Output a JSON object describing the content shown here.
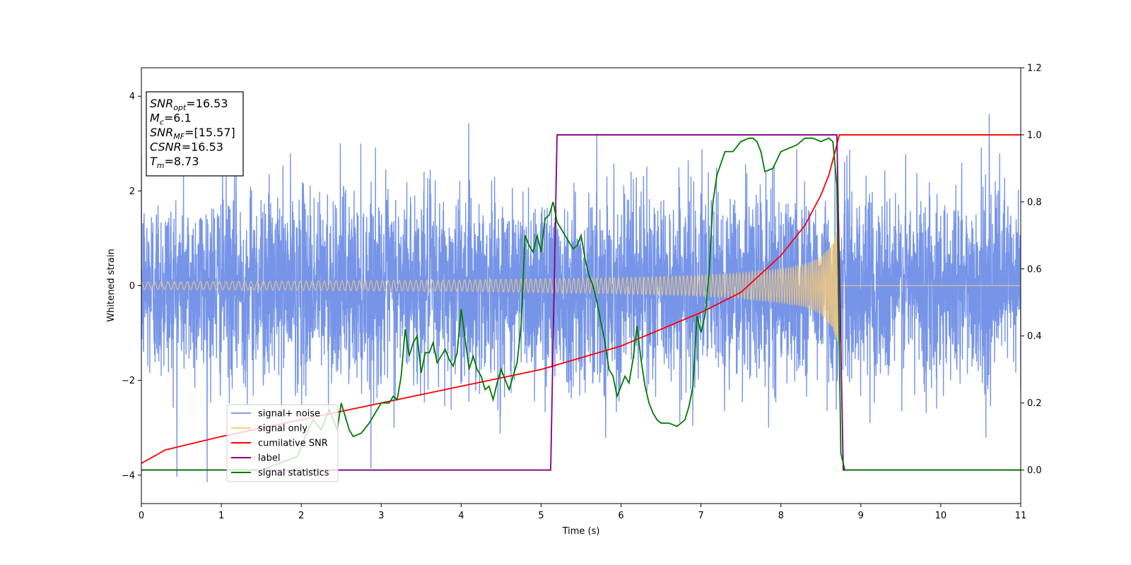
{
  "chart_data": {
    "type": "line",
    "title": "",
    "xlabel": "Time (s)",
    "ylabel": "Whitened strain",
    "ylabel_right": "",
    "xlim": [
      0,
      11
    ],
    "ylim": [
      -4.6,
      4.6
    ],
    "ylim_right": [
      -0.1,
      1.2
    ],
    "xticks": [
      "0",
      "1",
      "2",
      "3",
      "4",
      "5",
      "6",
      "7",
      "8",
      "9",
      "10",
      "11"
    ],
    "yticks": [
      "−4",
      "−2",
      "0",
      "2",
      "4"
    ],
    "yticks_right": [
      "0.0",
      "0.2",
      "0.4",
      "0.6",
      "0.8",
      "1.0",
      "1.2"
    ],
    "grid": false,
    "legend_position": "lower-left",
    "colors": {
      "noise": "#6b8ce6",
      "signal": "#f5c97a",
      "csnr": "#ff0000",
      "label": "#800080",
      "stats": "#007a00"
    },
    "annotation": {
      "lines": [
        {
          "base": "SNR",
          "sub": "opt",
          "value": "=16.53"
        },
        {
          "base": "M",
          "sub": "c",
          "value": "=6.1"
        },
        {
          "base": "SNR",
          "sub": "MF",
          "value": "=[15.57]"
        },
        {
          "base": "CSNR",
          "sub": "",
          "value": "=16.53"
        },
        {
          "base": "T",
          "sub": "m",
          "value": "=8.73"
        }
      ]
    },
    "series": [
      {
        "name": "signal+ noise",
        "axis": "left",
        "kind": "noise",
        "sigma": 1.0,
        "x_range": [
          0,
          11
        ],
        "envelope_note": "white noise, amplitude mostly within ±3"
      },
      {
        "name": "signal only",
        "axis": "left",
        "kind": "chirp",
        "merger_time": 8.73,
        "envelope": {
          "x": [
            0,
            2,
            4,
            6,
            7,
            7.5,
            8,
            8.3,
            8.5,
            8.65,
            8.73
          ],
          "y": [
            0.08,
            0.1,
            0.12,
            0.17,
            0.22,
            0.27,
            0.36,
            0.45,
            0.6,
            0.9,
            1.35
          ]
        }
      },
      {
        "name": "cumilative SNR",
        "axis": "right",
        "x": [
          0,
          0.3,
          1,
          2,
          3,
          4,
          5,
          6,
          7,
          7.5,
          8,
          8.3,
          8.5,
          8.6,
          8.7,
          8.73,
          11
        ],
        "y": [
          0.02,
          0.06,
          0.1,
          0.15,
          0.2,
          0.25,
          0.3,
          0.37,
          0.47,
          0.53,
          0.64,
          0.73,
          0.82,
          0.88,
          0.97,
          1.0,
          1.0
        ]
      },
      {
        "name": "label",
        "axis": "right",
        "x": [
          0,
          5.12,
          5.2,
          8.7,
          8.78,
          11
        ],
        "y": [
          0,
          0,
          1,
          1,
          0,
          0
        ]
      },
      {
        "name": "signal statistics",
        "axis": "right",
        "x": [
          0,
          0.5,
          1,
          1.5,
          1.95,
          2.05,
          2.15,
          2.25,
          2.35,
          2.45,
          2.5,
          2.55,
          2.6,
          2.65,
          2.75,
          2.85,
          2.95,
          3.0,
          3.1,
          3.15,
          3.2,
          3.25,
          3.3,
          3.35,
          3.4,
          3.45,
          3.5,
          3.55,
          3.6,
          3.65,
          3.7,
          3.75,
          3.8,
          3.85,
          3.9,
          3.95,
          4.0,
          4.1,
          4.15,
          4.2,
          4.25,
          4.3,
          4.35,
          4.4,
          4.45,
          4.5,
          4.55,
          4.6,
          4.65,
          4.7,
          4.75,
          4.8,
          4.85,
          4.9,
          4.95,
          5.0,
          5.05,
          5.1,
          5.15,
          5.2,
          5.25,
          5.3,
          5.35,
          5.4,
          5.45,
          5.5,
          5.55,
          5.6,
          5.65,
          5.7,
          5.75,
          5.8,
          5.85,
          5.9,
          5.95,
          6.0,
          6.05,
          6.1,
          6.15,
          6.2,
          6.25,
          6.3,
          6.35,
          6.4,
          6.45,
          6.5,
          6.6,
          6.7,
          6.8,
          6.85,
          6.9,
          6.95,
          7.0,
          7.05,
          7.1,
          7.15,
          7.2,
          7.3,
          7.4,
          7.5,
          7.6,
          7.65,
          7.7,
          7.75,
          7.8,
          7.9,
          8.0,
          8.1,
          8.2,
          8.3,
          8.4,
          8.5,
          8.6,
          8.65,
          8.7,
          8.75,
          8.8,
          11
        ],
        "y": [
          0.0,
          0.0,
          0.0,
          0.0,
          0.04,
          0.1,
          0.15,
          0.12,
          0.18,
          0.12,
          0.2,
          0.16,
          0.12,
          0.1,
          0.11,
          0.14,
          0.18,
          0.2,
          0.2,
          0.22,
          0.21,
          0.28,
          0.42,
          0.34,
          0.38,
          0.4,
          0.29,
          0.35,
          0.35,
          0.38,
          0.32,
          0.34,
          0.36,
          0.33,
          0.31,
          0.35,
          0.48,
          0.3,
          0.34,
          0.3,
          0.28,
          0.24,
          0.25,
          0.21,
          0.26,
          0.3,
          0.27,
          0.24,
          0.28,
          0.32,
          0.43,
          0.7,
          0.67,
          0.65,
          0.7,
          0.65,
          0.75,
          0.76,
          0.8,
          0.74,
          0.72,
          0.7,
          0.68,
          0.66,
          0.67,
          0.7,
          0.63,
          0.58,
          0.55,
          0.5,
          0.44,
          0.38,
          0.3,
          0.28,
          0.22,
          0.25,
          0.28,
          0.26,
          0.33,
          0.43,
          0.33,
          0.25,
          0.2,
          0.17,
          0.15,
          0.14,
          0.14,
          0.13,
          0.15,
          0.19,
          0.25,
          0.46,
          0.41,
          0.46,
          0.58,
          0.8,
          0.88,
          0.95,
          0.95,
          0.98,
          0.99,
          0.99,
          0.98,
          0.95,
          0.89,
          0.9,
          0.95,
          0.96,
          0.97,
          0.99,
          0.99,
          0.98,
          0.99,
          0.98,
          0.85,
          0.05,
          0.0,
          0.0
        ]
      }
    ]
  }
}
